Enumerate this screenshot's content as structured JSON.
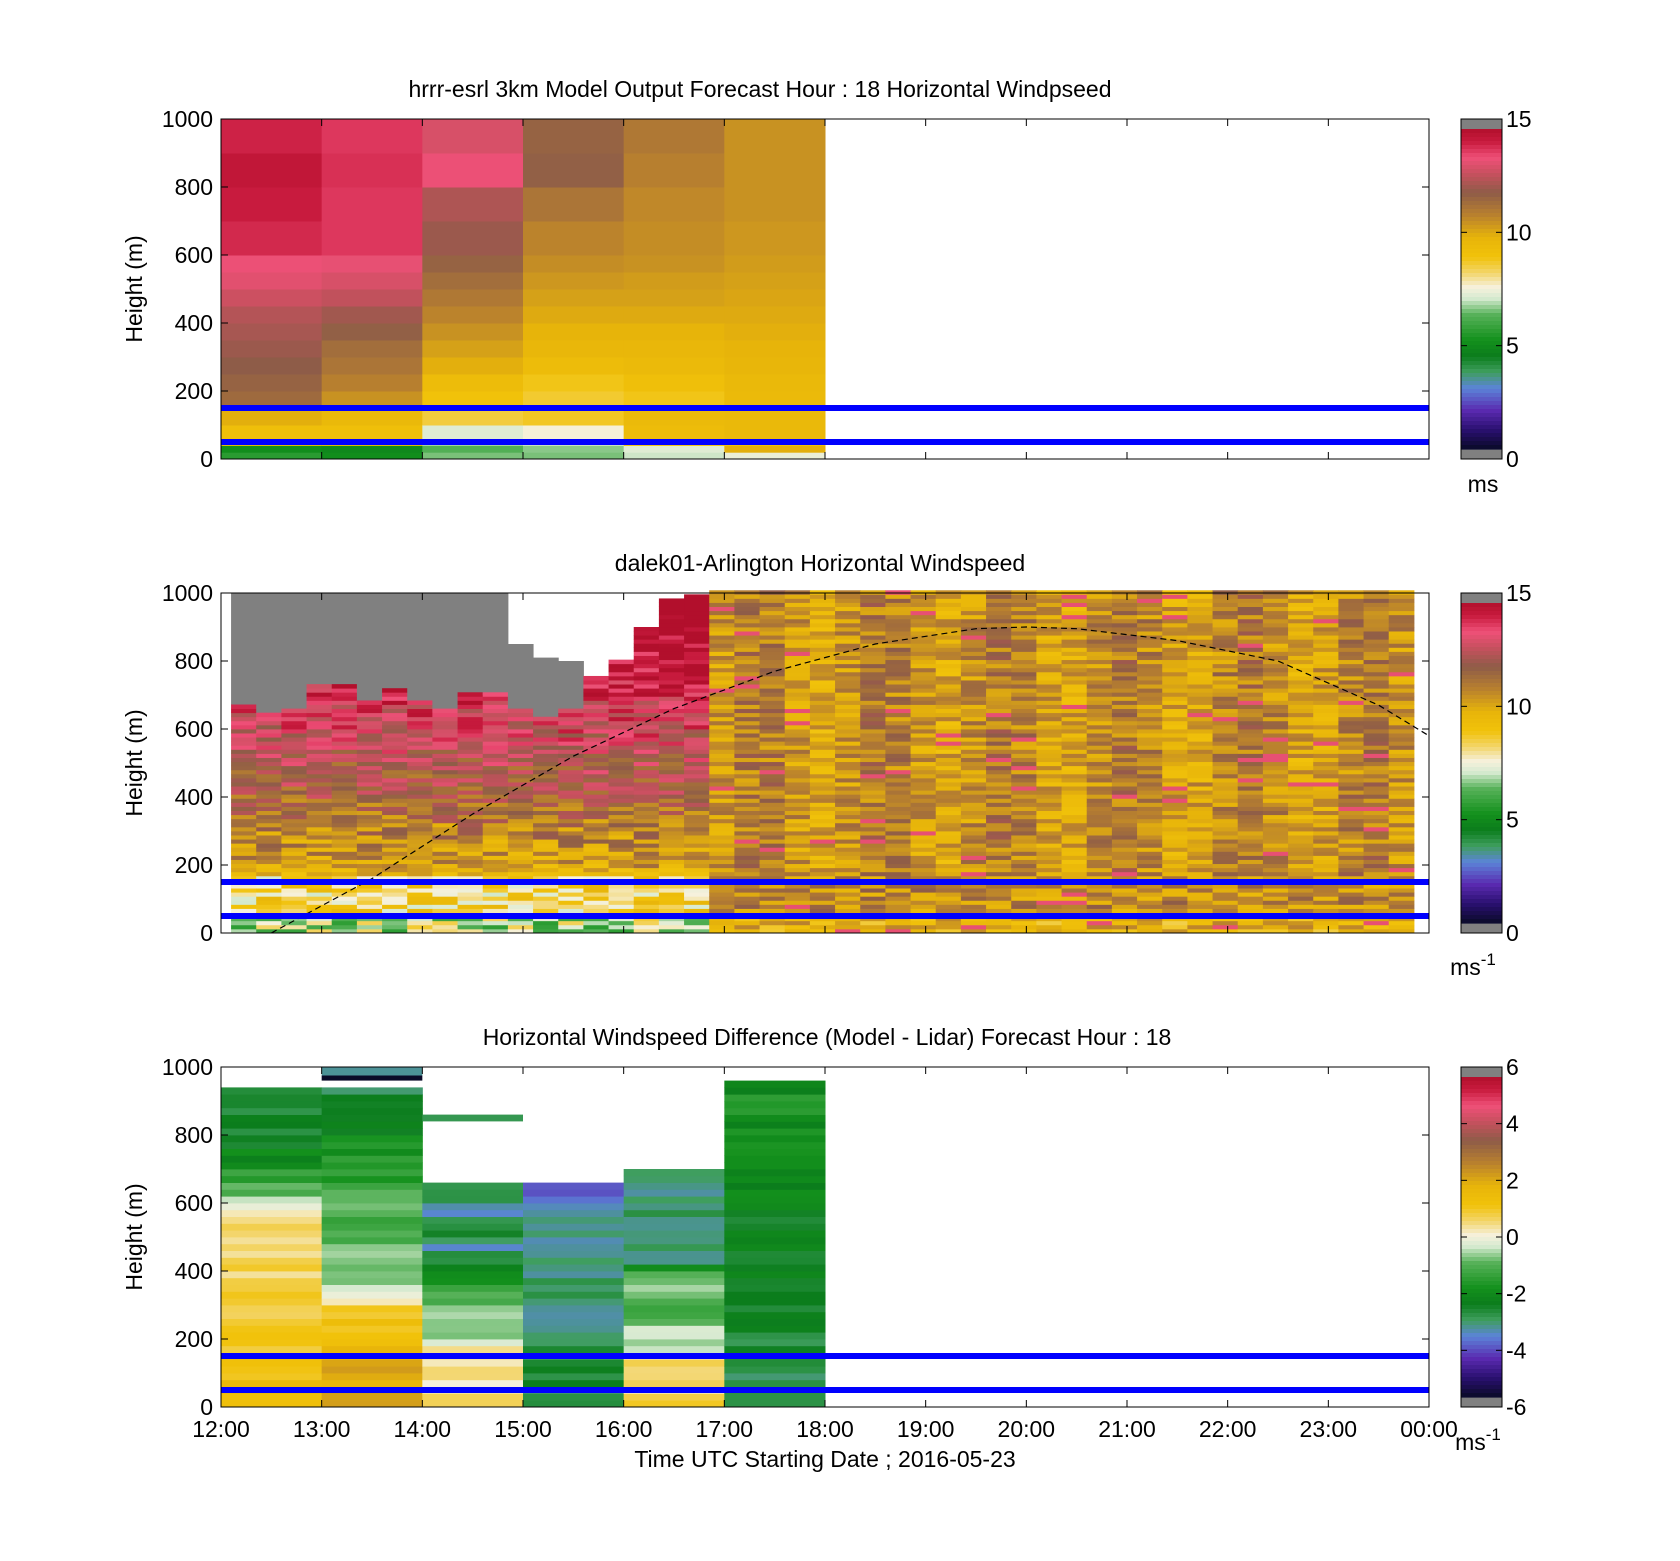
{
  "chart_data": [
    {
      "type": "heatmap",
      "id": "model",
      "title": "hrrr-esrl 3km Model Output   Forecast Hour : 18 Horizontal Windpseed",
      "ylabel": "Height (m)",
      "xlabel": "",
      "xlim": [
        12,
        24
      ],
      "ylim": [
        0,
        1000
      ],
      "y_ticks": [
        "0",
        "200",
        "400",
        "600",
        "800",
        "1000"
      ],
      "x_ticks": [
        "12:00",
        "13:00",
        "14:00",
        "15:00",
        "16:00",
        "17:00",
        "18:00",
        "19:00",
        "20:00",
        "21:00",
        "22:00",
        "23:00",
        "00:00"
      ],
      "show_x_tick_labels": false,
      "reference_lines_m": [
        50,
        150
      ],
      "colorbar": {
        "range": [
          0,
          15
        ],
        "ticks": [
          "0",
          "5",
          "10",
          "15"
        ],
        "unit": "ms",
        "unit_sup": ""
      },
      "data_coverage": [
        12,
        18
      ],
      "columns_hours": [
        12,
        13,
        14,
        15,
        16,
        17
      ],
      "levels_m": [
        [
          0,
          20
        ],
        [
          20,
          40
        ],
        [
          40,
          60
        ],
        [
          60,
          100
        ],
        [
          100,
          150
        ],
        [
          150,
          200
        ],
        [
          200,
          250
        ],
        [
          250,
          300
        ],
        [
          300,
          350
        ],
        [
          350,
          400
        ],
        [
          400,
          450
        ],
        [
          450,
          500
        ],
        [
          500,
          550
        ],
        [
          550,
          600
        ],
        [
          600,
          700
        ],
        [
          700,
          800
        ],
        [
          800,
          900
        ],
        [
          900,
          1000
        ]
      ],
      "values": [
        [
          5.5,
          5.0,
          6.5,
          6.5,
          7.0,
          7.4
        ],
        [
          5.0,
          4.8,
          6.2,
          6.6,
          7.2,
          10.0
        ],
        [
          9.0,
          9.0,
          6.8,
          7.0,
          9.0,
          9.0
        ],
        [
          9.2,
          9.2,
          7.2,
          7.6,
          9.4,
          9.6
        ],
        [
          10.0,
          9.6,
          8.6,
          8.8,
          9.5,
          9.6
        ],
        [
          11.6,
          10.6,
          9.0,
          8.7,
          8.9,
          9.5
        ],
        [
          11.8,
          11.0,
          9.4,
          8.9,
          9.2,
          9.6
        ],
        [
          12.0,
          11.3,
          10.0,
          9.4,
          9.5,
          9.8
        ],
        [
          12.2,
          11.5,
          10.3,
          9.7,
          9.7,
          9.9
        ],
        [
          12.4,
          11.9,
          10.6,
          9.9,
          9.9,
          10.0
        ],
        [
          12.6,
          12.3,
          10.9,
          10.1,
          10.1,
          10.1
        ],
        [
          13.0,
          12.8,
          11.2,
          10.3,
          10.3,
          10.2
        ],
        [
          13.4,
          13.2,
          11.5,
          10.5,
          10.4,
          10.3
        ],
        [
          13.6,
          13.5,
          11.8,
          10.7,
          10.6,
          10.4
        ],
        [
          14.2,
          14.0,
          12.2,
          10.9,
          10.7,
          10.5
        ],
        [
          14.4,
          14.0,
          12.5,
          11.3,
          10.8,
          10.6
        ],
        [
          14.6,
          14.1,
          13.6,
          11.9,
          11.0,
          10.6
        ],
        [
          14.3,
          14.0,
          13.2,
          11.8,
          11.2,
          10.6
        ]
      ]
    },
    {
      "type": "heatmap",
      "id": "lidar",
      "title": "dalek01-Arlington  Horizontal Windspeed",
      "ylabel": "Height (m)",
      "xlabel": "",
      "xlim": [
        12,
        24
      ],
      "ylim": [
        0,
        1000
      ],
      "y_ticks": [
        "0",
        "200",
        "400",
        "600",
        "800",
        "1000"
      ],
      "x_ticks": [
        "12:00",
        "13:00",
        "14:00",
        "15:00",
        "16:00",
        "17:00",
        "18:00",
        "19:00",
        "20:00",
        "21:00",
        "22:00",
        "23:00",
        "00:00"
      ],
      "show_x_tick_labels": false,
      "reference_lines_m": [
        50,
        150
      ],
      "colorbar": {
        "range": [
          0,
          15
        ],
        "ticks": [
          "0",
          "5",
          "10",
          "15"
        ],
        "unit": "ms",
        "unit_sup": "-1"
      },
      "data_coverage": [
        12,
        23.9
      ],
      "time_step_hours": 0.25,
      "bin_height_m": 12,
      "profile_top_m": [
        670,
        640,
        650,
        730,
        730,
        680,
        710,
        680,
        650,
        700,
        700,
        650,
        630,
        650,
        750,
        800,
        900,
        980,
        990,
        1000,
        1000,
        1000,
        1000,
        1000,
        1000,
        1000,
        1000,
        1000,
        1000,
        1000,
        1000,
        1000,
        1000,
        1000,
        1000,
        1000,
        1000,
        1000,
        1000,
        1000,
        1000,
        1000,
        1000,
        1000,
        1000,
        1000,
        1000
      ],
      "gray_top_m": [
        1000,
        1000,
        1000,
        1000,
        1000,
        1000,
        1000,
        1000,
        1000,
        1000,
        1000,
        850,
        810,
        800,
        0,
        0,
        0,
        0,
        0,
        0,
        0,
        0,
        0,
        0,
        0,
        0,
        0,
        0,
        0,
        0,
        0,
        0,
        0,
        0,
        0,
        0,
        0,
        0,
        0,
        0,
        0,
        0,
        0,
        0,
        0,
        0,
        0
      ],
      "boundary_layer_curve": {
        "x_hours": [
          12.5,
          13.5,
          14.5,
          15.5,
          16.5,
          17.5,
          18.5,
          19.5,
          20.0,
          20.5,
          21.5,
          22.5,
          23.5,
          24.0
        ],
        "y_m": [
          0,
          160,
          350,
          520,
          660,
          770,
          850,
          895,
          900,
          895,
          860,
          800,
          670,
          580
        ]
      }
    },
    {
      "type": "heatmap",
      "id": "difference",
      "title": "Horizontal Windspeed Difference (Model - Lidar) Forecast Hour : 18",
      "ylabel": "Height (m)",
      "xlabel": "Time UTC  Starting Date ; 2016-05-23",
      "xlim": [
        12,
        24
      ],
      "ylim": [
        0,
        1000
      ],
      "y_ticks": [
        "0",
        "200",
        "400",
        "600",
        "800",
        "1000"
      ],
      "x_ticks": [
        "12:00",
        "13:00",
        "14:00",
        "15:00",
        "16:00",
        "17:00",
        "18:00",
        "19:00",
        "20:00",
        "21:00",
        "22:00",
        "23:00",
        "00:00"
      ],
      "show_x_tick_labels": true,
      "reference_lines_m": [
        50,
        150
      ],
      "colorbar": {
        "range": [
          -6,
          6
        ],
        "ticks": [
          "-6",
          "-4",
          "-2",
          "0",
          "2",
          "4",
          "6"
        ],
        "unit": "ms",
        "unit_sup": "-1"
      },
      "data_coverage": [
        12,
        18
      ],
      "bin_height_m": 20,
      "columns": [
        {
          "hour": 12,
          "top_m": 940,
          "profile": [
            [
              0,
              1.6
            ],
            [
              100,
              1.4
            ],
            [
              200,
              1.1
            ],
            [
              300,
              0.8
            ],
            [
              400,
              0.7
            ],
            [
              500,
              0.6
            ],
            [
              550,
              0.3
            ],
            [
              600,
              -0.3
            ],
            [
              650,
              -1.2
            ],
            [
              700,
              -1.8
            ],
            [
              800,
              -2.6
            ],
            [
              940,
              -3.0
            ]
          ]
        },
        {
          "hour": 13,
          "top_m": 930,
          "profile": [
            [
              0,
              2.4
            ],
            [
              60,
              2.0
            ],
            [
              150,
              2.0
            ],
            [
              250,
              1.2
            ],
            [
              300,
              0.6
            ],
            [
              330,
              -0.3
            ],
            [
              400,
              -0.8
            ],
            [
              500,
              -1.0
            ],
            [
              600,
              -1.2
            ],
            [
              700,
              -1.6
            ],
            [
              800,
              -2.2
            ],
            [
              930,
              -3.0
            ]
          ]
        },
        {
          "hour": 14,
          "top_m": 660,
          "profile": [
            [
              0,
              0.6
            ],
            [
              60,
              0.3
            ],
            [
              100,
              0.6
            ],
            [
              150,
              0.4
            ],
            [
              200,
              -0.4
            ],
            [
              260,
              -0.6
            ],
            [
              320,
              -1.0
            ],
            [
              400,
              -2.4
            ],
            [
              450,
              -3.2
            ],
            [
              480,
              -3.6
            ],
            [
              520,
              -2.8
            ],
            [
              560,
              -3.4
            ],
            [
              620,
              -3.2
            ],
            [
              660,
              -3.0
            ]
          ]
        },
        {
          "hour": 15,
          "top_m": 660,
          "profile": [
            [
              0,
              -2.8
            ],
            [
              150,
              -3.0
            ],
            [
              300,
              -3.2
            ],
            [
              400,
              -3.1
            ],
            [
              500,
              -3.2
            ],
            [
              560,
              -3.6
            ],
            [
              620,
              -3.8
            ],
            [
              660,
              -3.8
            ]
          ]
        },
        {
          "hour": 16,
          "top_m": 690,
          "profile": [
            [
              0,
              0.8
            ],
            [
              60,
              0.3
            ],
            [
              120,
              0.6
            ],
            [
              180,
              -0.4
            ],
            [
              250,
              -0.8
            ],
            [
              320,
              -1.2
            ],
            [
              380,
              -0.6
            ],
            [
              420,
              -3.0
            ],
            [
              550,
              -3.2
            ],
            [
              690,
              -3.2
            ]
          ]
        },
        {
          "hour": 17,
          "top_m": 960,
          "profile": [
            [
              0,
              -3.0
            ],
            [
              200,
              -2.8
            ],
            [
              400,
              -2.4
            ],
            [
              600,
              -2.4
            ],
            [
              750,
              -2.2
            ],
            [
              850,
              -2.0
            ],
            [
              900,
              -1.6
            ],
            [
              960,
              -2.6
            ]
          ]
        }
      ],
      "extra_segments": [
        {
          "hour": 13,
          "y0": 975,
          "y1": 1000,
          "value": -3.4
        },
        {
          "hour": 13,
          "y0": 960,
          "y1": 975,
          "value": -6.5
        },
        {
          "hour": 14,
          "y0": 840,
          "y1": 860,
          "value": -3.0
        }
      ]
    }
  ]
}
